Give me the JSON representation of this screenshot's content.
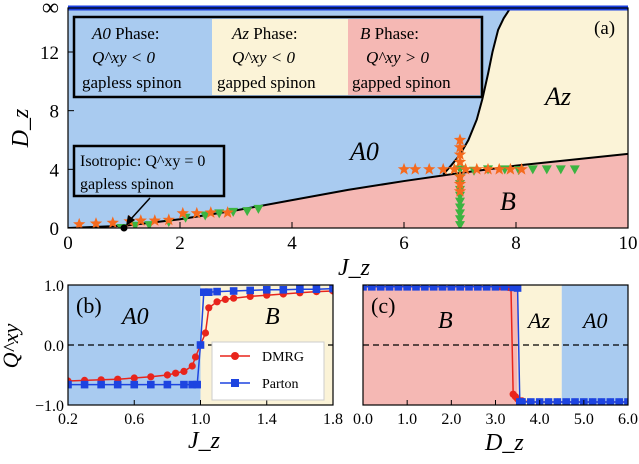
{
  "colors": {
    "A0": "#a9cbf0",
    "Az": "#fbf3d7",
    "B": "#f5b8b4",
    "dmrg": "#e8251c",
    "parton": "#1d44e0",
    "star": "#f56a1e",
    "tri": "#3cb441",
    "infinity_line": "#1a3fe0"
  },
  "chart_data": [
    {
      "id": "a",
      "type": "scatter",
      "panel_label": "(a)",
      "xlabel": "J_z",
      "ylabel": "D_z",
      "xlim": [
        0,
        10
      ],
      "ylim": [
        0,
        15
      ],
      "xticks": [
        0,
        2,
        4,
        6,
        8,
        10
      ],
      "xtick_labels": [
        "0",
        "2",
        "4",
        "6",
        "8",
        "10"
      ],
      "yticks": [
        0,
        4,
        8,
        12,
        15
      ],
      "ytick_labels": [
        "0",
        "4",
        "8",
        "12",
        "∞"
      ],
      "regions": [
        {
          "key": "A0",
          "label": "A0"
        },
        {
          "key": "Az",
          "label": "Az"
        },
        {
          "key": "B",
          "label": "B"
        }
      ],
      "legend": [
        {
          "key": "A0",
          "line1_symbol": "A0",
          "line1_text": "Phase:",
          "line2": "Q^xy < 0",
          "line3": "gapless spinon"
        },
        {
          "key": "Az",
          "line1_symbol": "Az",
          "line1_text": "Phase:",
          "line2": "Q^xy < 0",
          "line3": "gapped spinon"
        },
        {
          "key": "B",
          "line1_symbol": "B",
          "line1_text": "Phase:",
          "line2": "Q^xy > 0",
          "line3": "gapped spinon"
        }
      ],
      "isotropic_annotation": {
        "line1": "Isotropic: Q^xy = 0",
        "line2": "gapless spinon",
        "point": [
          1,
          0
        ]
      },
      "boundary_A0_B": [
        [
          0,
          0
        ],
        [
          1,
          0.15
        ],
        [
          2,
          0.6
        ],
        [
          3,
          1.2
        ],
        [
          4,
          1.9
        ],
        [
          5,
          2.6
        ],
        [
          6,
          3.2
        ],
        [
          7,
          3.75
        ],
        [
          8,
          4.25
        ],
        [
          9,
          4.65
        ],
        [
          10,
          5.05
        ]
      ],
      "boundary_A0_Az": [
        [
          6.7,
          3.65
        ],
        [
          6.85,
          4.3
        ],
        [
          7.0,
          5.0
        ],
        [
          7.15,
          6.0
        ],
        [
          7.3,
          7.4
        ],
        [
          7.4,
          8.8
        ],
        [
          7.5,
          10.5
        ],
        [
          7.58,
          12.0
        ],
        [
          7.68,
          13.5
        ],
        [
          7.78,
          14.3
        ],
        [
          7.9,
          15.0
        ]
      ],
      "stars_horizontal_low": [
        [
          0.2,
          0.25
        ],
        [
          0.5,
          0.3
        ],
        [
          0.8,
          0.35
        ],
        [
          1.1,
          0.45
        ],
        [
          1.3,
          0.5
        ],
        [
          1.55,
          0.5
        ],
        [
          1.8,
          0.55
        ],
        [
          2.05,
          1.0
        ],
        [
          2.3,
          1.0
        ],
        [
          2.55,
          1.05
        ],
        [
          2.85,
          1.05
        ]
      ],
      "triangles_horizontal_low": [
        [
          0.95,
          0.0
        ],
        [
          1.2,
          0.15
        ],
        [
          1.45,
          0.2
        ],
        [
          1.8,
          0.4
        ],
        [
          2.1,
          0.7
        ],
        [
          2.45,
          0.85
        ],
        [
          2.7,
          1.0
        ],
        [
          2.95,
          1.1
        ],
        [
          3.2,
          1.15
        ],
        [
          3.4,
          1.3
        ]
      ],
      "stars_horizontal_mid": [
        [
          6.0,
          4.0
        ],
        [
          6.2,
          4.0
        ],
        [
          6.45,
          4.0
        ],
        [
          6.7,
          4.0
        ],
        [
          6.9,
          4.0
        ],
        [
          7.1,
          4.0
        ],
        [
          7.3,
          4.0
        ],
        [
          7.5,
          4.0
        ],
        [
          7.7,
          4.0
        ],
        [
          7.9,
          4.0
        ],
        [
          8.1,
          4.0
        ]
      ],
      "triangles_horizontal_mid": [
        [
          7.0,
          4.0
        ],
        [
          7.25,
          3.9
        ],
        [
          7.5,
          4.0
        ],
        [
          7.8,
          4.0
        ],
        [
          8.05,
          3.95
        ],
        [
          8.3,
          4.0
        ],
        [
          8.55,
          4.0
        ],
        [
          8.8,
          4.0
        ],
        [
          9.05,
          4.0
        ]
      ],
      "stars_vertical": [
        [
          7.0,
          2.5
        ],
        [
          7.0,
          3.0
        ],
        [
          7.0,
          3.5
        ],
        [
          7.0,
          4.5
        ],
        [
          7.0,
          5.0
        ],
        [
          7.0,
          5.5
        ],
        [
          7.0,
          6.0
        ]
      ],
      "triangles_vertical": [
        [
          7.0,
          0.2
        ],
        [
          7.0,
          0.6
        ],
        [
          7.0,
          1.0
        ],
        [
          7.0,
          1.4
        ],
        [
          7.0,
          1.8
        ],
        [
          7.0,
          2.2
        ],
        [
          7.0,
          2.6
        ],
        [
          7.0,
          3.0
        ],
        [
          7.0,
          3.4
        ]
      ]
    },
    {
      "id": "b",
      "type": "line",
      "panel_label": "(b)",
      "xlabel": "J_z",
      "ylabel": "Q^xy",
      "xlim": [
        0.2,
        1.8
      ],
      "ylim": [
        -1.0,
        1.0
      ],
      "xticks": [
        0.2,
        0.6,
        1.0,
        1.4,
        1.8
      ],
      "xtick_labels": [
        "0.2",
        "0.6",
        "1.0",
        "1.4",
        "1.8"
      ],
      "yticks": [
        -1.0,
        0.0,
        1.0
      ],
      "ytick_labels": [
        "−1.0",
        "0.0",
        "1.0"
      ],
      "regions": [
        {
          "key": "A0",
          "label": "A0",
          "from": 0.2,
          "to": 1.0
        },
        {
          "key": "Az",
          "label": "B",
          "from": 1.0,
          "to": 1.8
        }
      ],
      "legend": [
        "DMRG",
        "Parton"
      ],
      "series": [
        {
          "name": "DMRG",
          "color_key": "dmrg",
          "marker": "circle",
          "x": [
            0.2,
            0.3,
            0.4,
            0.5,
            0.6,
            0.7,
            0.8,
            0.85,
            0.9,
            0.95,
            0.97,
            1.0,
            1.03,
            1.05,
            1.1,
            1.15,
            1.2,
            1.3,
            1.4,
            1.5,
            1.6,
            1.7,
            1.8
          ],
          "y": [
            -0.6,
            -0.59,
            -0.58,
            -0.57,
            -0.55,
            -0.53,
            -0.5,
            -0.47,
            -0.44,
            -0.35,
            -0.2,
            0.0,
            0.2,
            0.62,
            0.72,
            0.76,
            0.78,
            0.81,
            0.83,
            0.85,
            0.87,
            0.89,
            0.9
          ]
        },
        {
          "name": "Parton",
          "color_key": "parton",
          "marker": "square",
          "x": [
            0.2,
            0.3,
            0.4,
            0.5,
            0.6,
            0.7,
            0.8,
            0.9,
            0.95,
            0.98,
            1.0,
            1.02,
            1.05,
            1.1,
            1.2,
            1.3,
            1.4,
            1.5,
            1.6,
            1.7,
            1.8
          ],
          "y": [
            -0.66,
            -0.66,
            -0.66,
            -0.66,
            -0.66,
            -0.66,
            -0.66,
            -0.66,
            -0.66,
            -0.66,
            0.0,
            0.88,
            0.88,
            0.89,
            0.9,
            0.91,
            0.92,
            0.92,
            0.93,
            0.93,
            0.94
          ]
        }
      ]
    },
    {
      "id": "c",
      "type": "line",
      "panel_label": "(c)",
      "xlabel": "D_z",
      "ylabel": "",
      "xlim": [
        0.0,
        6.0
      ],
      "ylim": [
        -1.0,
        1.0
      ],
      "xticks": [
        0.0,
        1.0,
        2.0,
        3.0,
        4.0,
        5.0,
        6.0
      ],
      "xtick_labels": [
        "0.0",
        "1.0",
        "2.0",
        "3.0",
        "4.0",
        "5.0",
        "6.0"
      ],
      "regions": [
        {
          "key": "B",
          "label": "B",
          "from": 0.0,
          "to": 3.5
        },
        {
          "key": "Az",
          "label": "Az",
          "from": 3.5,
          "to": 4.5
        },
        {
          "key": "A0",
          "label": "A0",
          "from": 4.5,
          "to": 6.0
        }
      ],
      "series": [
        {
          "name": "DMRG",
          "color_key": "dmrg",
          "marker": "circle",
          "x": [
            3.0,
            3.1,
            3.2,
            3.3,
            3.35,
            3.4,
            3.45,
            3.5,
            3.6,
            3.8,
            4.0,
            4.2,
            4.4,
            4.6,
            4.8,
            5.0,
            5.2,
            5.4,
            5.6,
            5.8,
            6.0
          ],
          "y": [
            0.97,
            0.97,
            0.97,
            0.96,
            0.96,
            -0.82,
            -0.86,
            -0.9,
            -0.93,
            -0.95,
            -0.95,
            -0.95,
            -0.95,
            -0.95,
            -0.95,
            -0.95,
            -0.95,
            -0.95,
            -0.95,
            -0.95,
            -0.95
          ]
        },
        {
          "name": "Parton",
          "color_key": "parton",
          "marker": "square",
          "x": [
            0.0,
            0.2,
            0.4,
            0.6,
            0.8,
            1.0,
            1.2,
            1.4,
            1.6,
            1.8,
            2.0,
            2.2,
            2.4,
            2.6,
            2.8,
            3.0,
            3.2,
            3.4,
            3.5,
            3.55,
            3.6,
            3.8,
            4.0,
            4.2,
            4.4,
            4.6,
            4.8,
            5.0,
            5.2,
            5.4,
            5.6,
            5.8,
            6.0
          ],
          "y": [
            0.97,
            0.97,
            0.97,
            0.97,
            0.97,
            0.97,
            0.97,
            0.97,
            0.97,
            0.97,
            0.97,
            0.97,
            0.97,
            0.97,
            0.97,
            0.97,
            0.97,
            0.96,
            0.95,
            -0.95,
            -0.95,
            -0.95,
            -0.95,
            -0.95,
            -0.95,
            -0.95,
            -0.95,
            -0.95,
            -0.95,
            -0.95,
            -0.95,
            -0.95,
            -0.95
          ]
        }
      ]
    }
  ]
}
